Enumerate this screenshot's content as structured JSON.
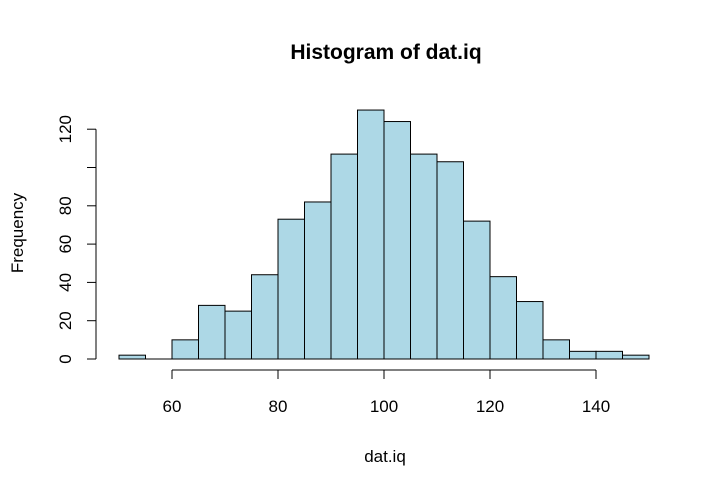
{
  "chart_data": {
    "type": "bar",
    "title": "Histogram of dat.iq",
    "xlabel": "dat.iq",
    "ylabel": "Frequency",
    "bin_width": 5,
    "bins": [
      {
        "start": 50,
        "end": 55,
        "count": 2
      },
      {
        "start": 55,
        "end": 60,
        "count": 0
      },
      {
        "start": 60,
        "end": 65,
        "count": 10
      },
      {
        "start": 65,
        "end": 70,
        "count": 28
      },
      {
        "start": 70,
        "end": 75,
        "count": 25
      },
      {
        "start": 75,
        "end": 80,
        "count": 44
      },
      {
        "start": 80,
        "end": 85,
        "count": 73
      },
      {
        "start": 85,
        "end": 90,
        "count": 82
      },
      {
        "start": 90,
        "end": 95,
        "count": 107
      },
      {
        "start": 95,
        "end": 100,
        "count": 130
      },
      {
        "start": 100,
        "end": 105,
        "count": 124
      },
      {
        "start": 105,
        "end": 110,
        "count": 107
      },
      {
        "start": 110,
        "end": 115,
        "count": 103
      },
      {
        "start": 115,
        "end": 120,
        "count": 72
      },
      {
        "start": 120,
        "end": 125,
        "count": 43
      },
      {
        "start": 125,
        "end": 130,
        "count": 30
      },
      {
        "start": 130,
        "end": 135,
        "count": 10
      },
      {
        "start": 135,
        "end": 140,
        "count": 4
      },
      {
        "start": 140,
        "end": 145,
        "count": 4
      },
      {
        "start": 145,
        "end": 150,
        "count": 2
      }
    ],
    "bar_color": "#ADD8E6",
    "x_ticks": [
      60,
      80,
      100,
      120,
      140
    ],
    "y_ticks": [
      0,
      20,
      40,
      60,
      80,
      100,
      120
    ],
    "y_tick_labels": [
      "0",
      "20",
      "40",
      "60",
      "80",
      "",
      "120"
    ],
    "xlim": [
      50,
      150
    ],
    "ylim": [
      0,
      120
    ],
    "grid": false
  }
}
